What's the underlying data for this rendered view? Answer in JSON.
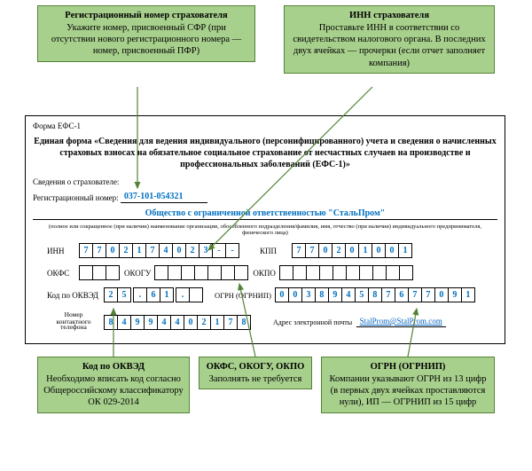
{
  "callouts": {
    "reg": {
      "title": "Регистрационный номер страхователя",
      "body": "Укажите номер, присвоенный СФР (при отсутствии нового регистрационного номера — номер, присвоенный ПФР)"
    },
    "inn": {
      "title": "ИНН страхователя",
      "body": "Проставьте ИНН в соответствии со свидетельством налогового органа. В последних двух ячейках — прочерки (если отчет заполняет компания)"
    },
    "okved": {
      "title": "Код по ОКВЭД",
      "body": "Необходимо вписать код согласно Общероссийскому классификатору ОК 029-2014"
    },
    "okfs": {
      "title": "ОКФС, ОКОГУ, ОКПО",
      "body": "Заполнять не требуется"
    },
    "ogrn": {
      "title": "ОГРН (ОГРНИП)",
      "body": "Компании указывают ОГРН из 13 цифр (в первых двух ячейках проставляются нули), ИП — ОГРНИП из 15 цифр"
    }
  },
  "form": {
    "form_code": "Форма ЕФС-1",
    "title": "Единая форма «Сведения для ведения индивидуального (персонифицированного) учета и сведения о начисленных страховых взносах на обязательное социальное страхование от несчастных случаев на производстве и профессиональных заболеваний (ЕФС-1)»",
    "section_label": "Сведения о страхователе:",
    "reg_label": "Регистрационный номер:",
    "reg_value": "037-101-054321",
    "org_name": "Общество с ограниченной ответственностью \"СтальПром\"",
    "org_note": "(полное или сокращенное (при наличии) наименование организации, обособленного подразделения/фамилия, имя, отчество (при наличии) индивидуального предпринимателя, физического лица)",
    "inn_label": "ИНН",
    "inn": [
      "7",
      "7",
      "0",
      "2",
      "1",
      "7",
      "4",
      "0",
      "2",
      "3",
      "-",
      "-"
    ],
    "kpp_label": "КПП",
    "kpp": [
      "7",
      "7",
      "0",
      "2",
      "0",
      "1",
      "0",
      "0",
      "1"
    ],
    "okfs_label": "ОКФС",
    "okfs": [
      "",
      "",
      ""
    ],
    "okogu_label": "ОКОГУ",
    "okogu": [
      "",
      "",
      "",
      "",
      "",
      "",
      ""
    ],
    "okpo_label": "ОКПО",
    "okpo": [
      "",
      "",
      "",
      "",
      "",
      "",
      "",
      "",
      "",
      ""
    ],
    "okved_label": "Код по ОКВЭД",
    "okved": [
      "2",
      "5",
      ".",
      "6",
      "1",
      ".",
      ""
    ],
    "ogrn_label": "ОГРН (ОГРНИП)",
    "ogrn": [
      "0",
      "0",
      "3",
      "8",
      "9",
      "4",
      "5",
      "8",
      "7",
      "6",
      "7",
      "7",
      "0",
      "9",
      "1"
    ],
    "phone_label1": "Номер контактного",
    "phone_label2": "телефона",
    "phone": [
      "8",
      "4",
      "9",
      "9",
      "4",
      "4",
      "0",
      "2",
      "1",
      "7",
      "8"
    ],
    "email_label": "Адрес электронной почты",
    "email": "StalProm@StalProm.com"
  },
  "colors": {
    "callout_bg": "#a8d08d",
    "callout_border": "#548235",
    "value_blue": "#0070c0",
    "link_blue": "#0563c1"
  }
}
